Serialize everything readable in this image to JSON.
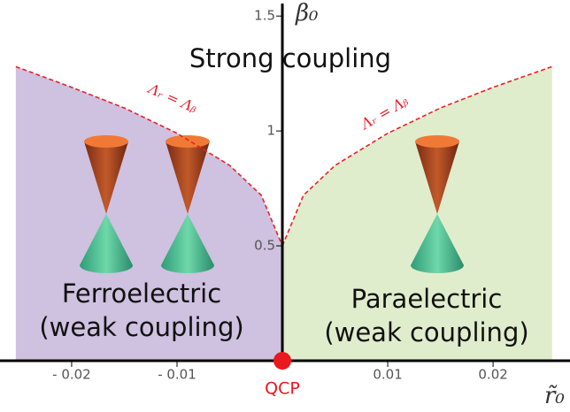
{
  "chart_data": {
    "type": "phase-diagram",
    "x_label": "r̃₀",
    "y_label": "β₀",
    "xlim": [
      -0.0268,
      0.0273
    ],
    "ylim": [
      0,
      1.57
    ],
    "xticks": [
      {
        "value": -0.02,
        "label": "- 0.02"
      },
      {
        "value": -0.01,
        "label": "- 0.01"
      },
      0.01,
      0.02
    ],
    "yticks": [
      0.5,
      1,
      1.5
    ],
    "series": [
      {
        "name": "Λᵣ = Λᵦ",
        "color": "#e8212a",
        "x": [
          -0.0253,
          -0.02,
          -0.015,
          -0.01,
          -0.005,
          -0.002,
          0
        ],
        "values": [
          1.28,
          1.19,
          1.1,
          0.99,
          0.85,
          0.72,
          0.5
        ]
      },
      {
        "name": "Λᵣ = Λᵦ",
        "color": "#e8212a",
        "x": [
          0,
          0.002,
          0.005,
          0.01,
          0.015,
          0.02,
          0.0256
        ],
        "values": [
          0.5,
          0.72,
          0.85,
          0.99,
          1.1,
          1.19,
          1.28
        ]
      }
    ],
    "regions": [
      {
        "label": "Ferroelectric",
        "sublabel": "(weak coupling)",
        "color": "#cfc1e0"
      },
      {
        "label": "Paraelectric",
        "sublabel": "(weak coupling)",
        "color": "#e0edcc"
      }
    ],
    "top_label": "Strong coupling",
    "point": {
      "label": "QCP",
      "x": 0,
      "y": 0,
      "color": "#e8191f"
    }
  }
}
